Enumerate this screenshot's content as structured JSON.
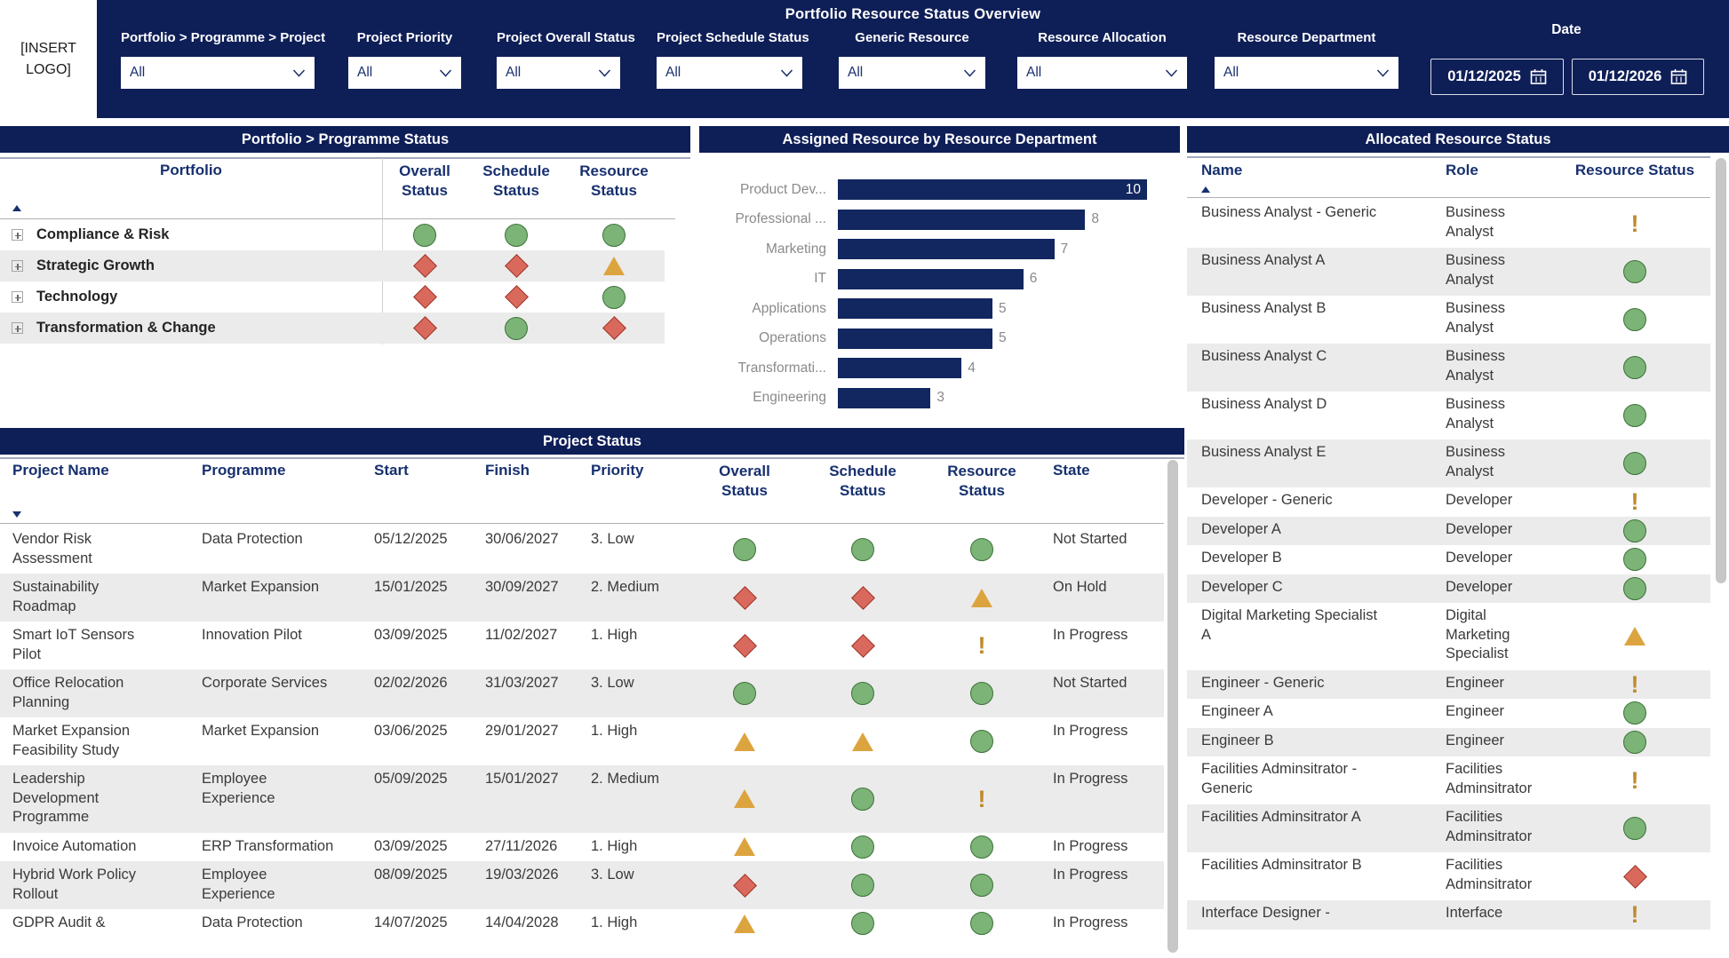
{
  "header": {
    "logo": "[INSERT LOGO]",
    "title": "Portfolio Resource Status Overview",
    "filters": [
      {
        "label": "Portfolio > Programme > Project",
        "value": "All"
      },
      {
        "label": "Project Priority",
        "value": "All"
      },
      {
        "label": "Project Overall Status",
        "value": "All"
      },
      {
        "label": "Project Schedule Status",
        "value": "All"
      },
      {
        "label": "Generic Resource",
        "value": "All"
      },
      {
        "label": "Resource Allocation",
        "value": "All"
      },
      {
        "label": "Resource Department",
        "value": "All"
      }
    ],
    "date": {
      "label": "Date",
      "from": "01/12/2025",
      "to": "01/12/2026"
    }
  },
  "portfolio_status": {
    "title": "Portfolio > Programme Status",
    "columns": [
      "Portfolio",
      "Overall Status",
      "Schedule Status",
      "Resource Status"
    ],
    "sort_direction": "asc",
    "rows": [
      {
        "name": "Compliance & Risk",
        "overall": "green",
        "schedule": "green",
        "resource": "green"
      },
      {
        "name": "Strategic Growth",
        "overall": "red",
        "schedule": "red",
        "resource": "amber"
      },
      {
        "name": "Technology",
        "overall": "red",
        "schedule": "red",
        "resource": "green"
      },
      {
        "name": "Transformation & Change",
        "overall": "red",
        "schedule": "green",
        "resource": "red"
      }
    ]
  },
  "chart_data": {
    "type": "bar",
    "orientation": "horizontal",
    "title": "Assigned Resource by Resource Department",
    "categories": [
      "Product Dev...",
      "Professional ...",
      "Marketing",
      "IT",
      "Applications",
      "Operations",
      "Transformati...",
      "Engineering"
    ],
    "values": [
      10,
      8,
      7,
      6,
      5,
      5,
      4,
      3
    ],
    "xlim": [
      0,
      10
    ],
    "bar_color": "#12265f",
    "value_labels": true,
    "legend": "none",
    "grid": false
  },
  "allocated": {
    "title": "Allocated Resource Status",
    "columns": [
      "Name",
      "Role",
      "Resource Status"
    ],
    "sort_direction": "asc",
    "rows": [
      {
        "name": "Business Analyst - Generic",
        "role": "Business Analyst",
        "status": "excl"
      },
      {
        "name": "Business Analyst A",
        "role": "Business Analyst",
        "status": "green"
      },
      {
        "name": "Business Analyst B",
        "role": "Business Analyst",
        "status": "green"
      },
      {
        "name": "Business Analyst C",
        "role": "Business Analyst",
        "status": "green"
      },
      {
        "name": "Business Analyst D",
        "role": "Business Analyst",
        "status": "green"
      },
      {
        "name": "Business Analyst E",
        "role": "Business Analyst",
        "status": "green"
      },
      {
        "name": "Developer - Generic",
        "role": "Developer",
        "status": "excl"
      },
      {
        "name": "Developer A",
        "role": "Developer",
        "status": "green"
      },
      {
        "name": "Developer B",
        "role": "Developer",
        "status": "green"
      },
      {
        "name": "Developer C",
        "role": "Developer",
        "status": "green"
      },
      {
        "name": "Digital Marketing Specialist A",
        "role": "Digital Marketing Specialist",
        "status": "amber"
      },
      {
        "name": "Engineer - Generic",
        "role": "Engineer",
        "status": "excl"
      },
      {
        "name": "Engineer A",
        "role": "Engineer",
        "status": "green"
      },
      {
        "name": "Engineer B",
        "role": "Engineer",
        "status": "green"
      },
      {
        "name": "Facilities Adminsitrator - Generic",
        "role": "Facilities Adminsitrator",
        "status": "excl"
      },
      {
        "name": "Facilities Adminsitrator A",
        "role": "Facilities Adminsitrator",
        "status": "green"
      },
      {
        "name": "Facilities Adminsitrator B",
        "role": "Facilities Adminsitrator",
        "status": "red"
      },
      {
        "name": "Interface Designer -",
        "role": "Interface",
        "status": "excl"
      }
    ]
  },
  "projects": {
    "title": "Project Status",
    "columns": [
      "Project Name",
      "Programme",
      "Start",
      "Finish",
      "Priority",
      "Overall Status",
      "Schedule Status",
      "Resource Status",
      "State"
    ],
    "sort_direction": "desc",
    "rows": [
      {
        "name": "Vendor Risk Assessment",
        "programme": "Data Protection",
        "start": "05/12/2025",
        "finish": "30/06/2027",
        "priority": "3. Low",
        "overall": "green",
        "schedule": "green",
        "resource": "green",
        "state": "Not Started"
      },
      {
        "name": "Sustainability Roadmap",
        "programme": "Market Expansion",
        "start": "15/01/2025",
        "finish": "30/09/2027",
        "priority": "2. Medium",
        "overall": "red",
        "schedule": "red",
        "resource": "amber",
        "state": "On Hold"
      },
      {
        "name": "Smart IoT Sensors Pilot",
        "programme": "Innovation Pilot",
        "start": "03/09/2025",
        "finish": "11/02/2027",
        "priority": "1. High",
        "overall": "red",
        "schedule": "red",
        "resource": "excl",
        "state": "In Progress"
      },
      {
        "name": "Office Relocation Planning",
        "programme": "Corporate Services",
        "start": "02/02/2026",
        "finish": "31/03/2027",
        "priority": "3. Low",
        "overall": "green",
        "schedule": "green",
        "resource": "green",
        "state": "Not Started"
      },
      {
        "name": "Market Expansion Feasibility Study",
        "programme": "Market Expansion",
        "start": "03/06/2025",
        "finish": "29/01/2027",
        "priority": "1. High",
        "overall": "amber",
        "schedule": "amber",
        "resource": "green",
        "state": "In Progress"
      },
      {
        "name": "Leadership Development Programme",
        "programme": "Employee Experience",
        "start": "05/09/2025",
        "finish": "15/01/2027",
        "priority": "2. Medium",
        "overall": "amber",
        "schedule": "green",
        "resource": "excl",
        "state": "In Progress"
      },
      {
        "name": "Invoice Automation",
        "programme": "ERP Transformation",
        "start": "03/09/2025",
        "finish": "27/11/2026",
        "priority": "1. High",
        "overall": "amber",
        "schedule": "green",
        "resource": "green",
        "state": "In Progress"
      },
      {
        "name": "Hybrid Work Policy Rollout",
        "programme": "Employee Experience",
        "start": "08/09/2025",
        "finish": "19/03/2026",
        "priority": "3. Low",
        "overall": "red",
        "schedule": "green",
        "resource": "green",
        "state": "In Progress"
      },
      {
        "name": "GDPR Audit &",
        "programme": "Data Protection",
        "start": "14/07/2025",
        "finish": "14/04/2028",
        "priority": "1. High",
        "overall": "amber",
        "schedule": "green",
        "resource": "green",
        "state": "In Progress"
      }
    ]
  },
  "colors": {
    "navy": "#0e1e57",
    "bar": "#12265f",
    "header_text": "#17306e",
    "status_green": "#7cb377",
    "status_red": "#d9695c",
    "status_amber": "#dca43e",
    "status_exclamation": "#bf8a2d",
    "row_alt": "#ebebeb",
    "label_gray": "#8a8a8a"
  }
}
